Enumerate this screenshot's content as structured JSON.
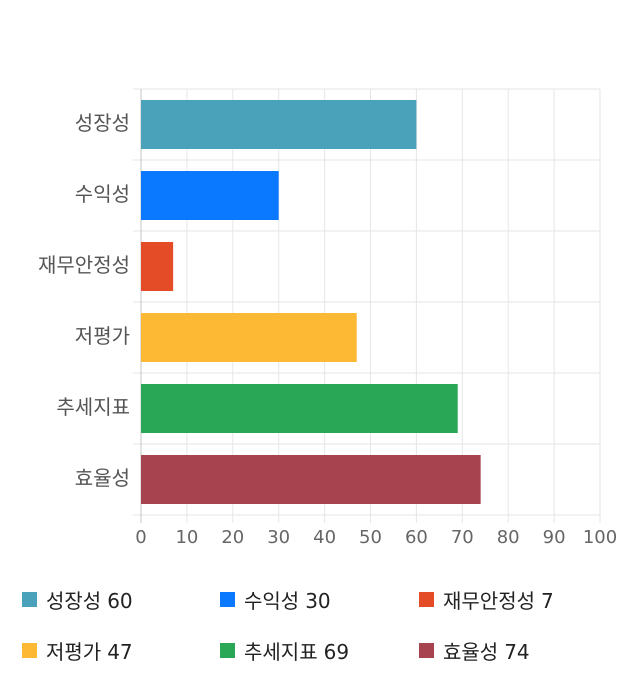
{
  "chart_data": {
    "type": "bar",
    "orientation": "horizontal",
    "categories": [
      "성장성",
      "수익성",
      "재무안정성",
      "저평가",
      "추세지표",
      "효율성"
    ],
    "values": [
      60,
      30,
      7,
      47,
      69,
      74
    ],
    "colors": [
      "#4aa1ba",
      "#0a78ff",
      "#e34c26",
      "#fdb933",
      "#29a656",
      "#a6434f"
    ],
    "xlim": [
      0,
      100
    ],
    "xticks": [
      "0",
      "10",
      "20",
      "30",
      "40",
      "50",
      "60",
      "70",
      "80",
      "90",
      "100"
    ],
    "grid": true,
    "legend_position": "bottom"
  },
  "legend": [
    {
      "label": "성장성",
      "value": "60",
      "color": "#4aa1ba"
    },
    {
      "label": "수익성",
      "value": "30",
      "color": "#0a78ff"
    },
    {
      "label": "재무안정성",
      "value": "7",
      "color": "#e34c26"
    },
    {
      "label": "저평가",
      "value": "47",
      "color": "#fdb933"
    },
    {
      "label": "추세지표",
      "value": "69",
      "color": "#29a656"
    },
    {
      "label": "효율성",
      "value": "74",
      "color": "#a6434f"
    }
  ]
}
